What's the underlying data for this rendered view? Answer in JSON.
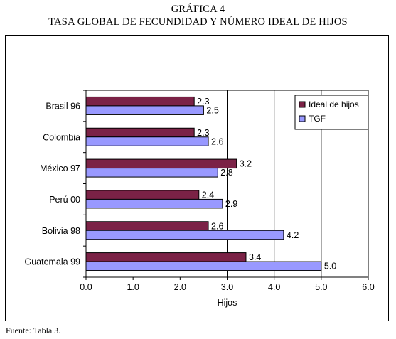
{
  "header": {
    "label": "GRÁFICA 4",
    "title": "TASA GLOBAL DE FECUNDIDAD Y NÚMERO IDEAL DE HIJOS"
  },
  "footer": {
    "source": "Fuente: Tabla 3."
  },
  "colors": {
    "ideal": "#7b2246",
    "tgf": "#9999ff",
    "frame": "#000000"
  },
  "chart_data": {
    "type": "bar",
    "orientation": "horizontal",
    "categories": [
      "Brasil 96",
      "Colombia",
      "México 97",
      "Perú 00",
      "Bolivia 98",
      "Guatemala 99"
    ],
    "series": [
      {
        "name": "Ideal de hijos",
        "values": [
          2.3,
          2.3,
          3.2,
          2.4,
          2.6,
          3.4
        ],
        "labels": [
          "2.3",
          "2.3",
          "3.2",
          "2.4",
          "2.6",
          "3.4"
        ]
      },
      {
        "name": "TGF",
        "values": [
          2.5,
          2.6,
          2.8,
          2.9,
          4.2,
          5.0
        ],
        "labels": [
          "2.5",
          "2.6",
          "2.8",
          "2.9",
          "4.2",
          "5.0"
        ]
      }
    ],
    "xlabel": "Hijos",
    "ylabel": "",
    "xlim": [
      0,
      6
    ],
    "xticks": [
      0,
      1,
      2,
      3,
      4,
      5,
      6
    ],
    "xtick_labels": [
      "0.0",
      "1.0",
      "2.0",
      "3.0",
      "4.0",
      "5.0",
      "6.0"
    ],
    "grid": "vertical lines at 3.0, 4.0, 5.0",
    "legend_position": "top-right"
  }
}
